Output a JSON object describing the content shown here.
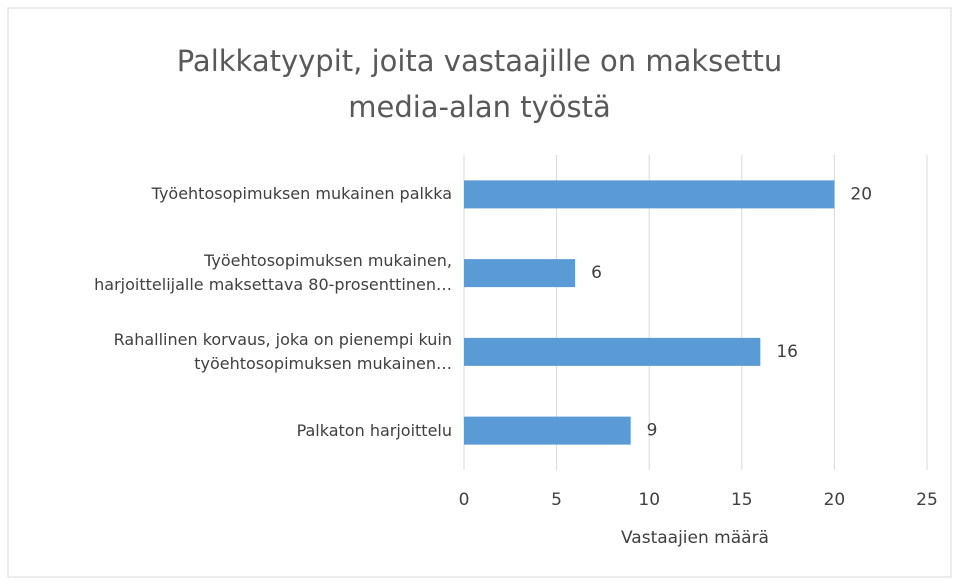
{
  "chart_data": {
    "type": "hbar",
    "title": "Palkkatyypit, joita vastaajille on maksettu\nmedia-alan työstä",
    "categories": [
      "Työehtosopimuksen mukainen palkka",
      "Työehtosopimuksen mukainen,\nharjoittelijalle maksettava 80-prosenttinen…",
      "Rahallinen korvaus, joka on pienempi kuin\ntyöehtosopimuksen mukainen…",
      "Palkaton harjoittelu"
    ],
    "values": [
      20,
      6,
      16,
      9
    ],
    "color": "#5b9bd5",
    "xlabel": "Vastaajien määrä",
    "xlim": [
      0,
      25
    ],
    "xticks": [
      0,
      5,
      10,
      15,
      20,
      25
    ],
    "grid": true
  }
}
